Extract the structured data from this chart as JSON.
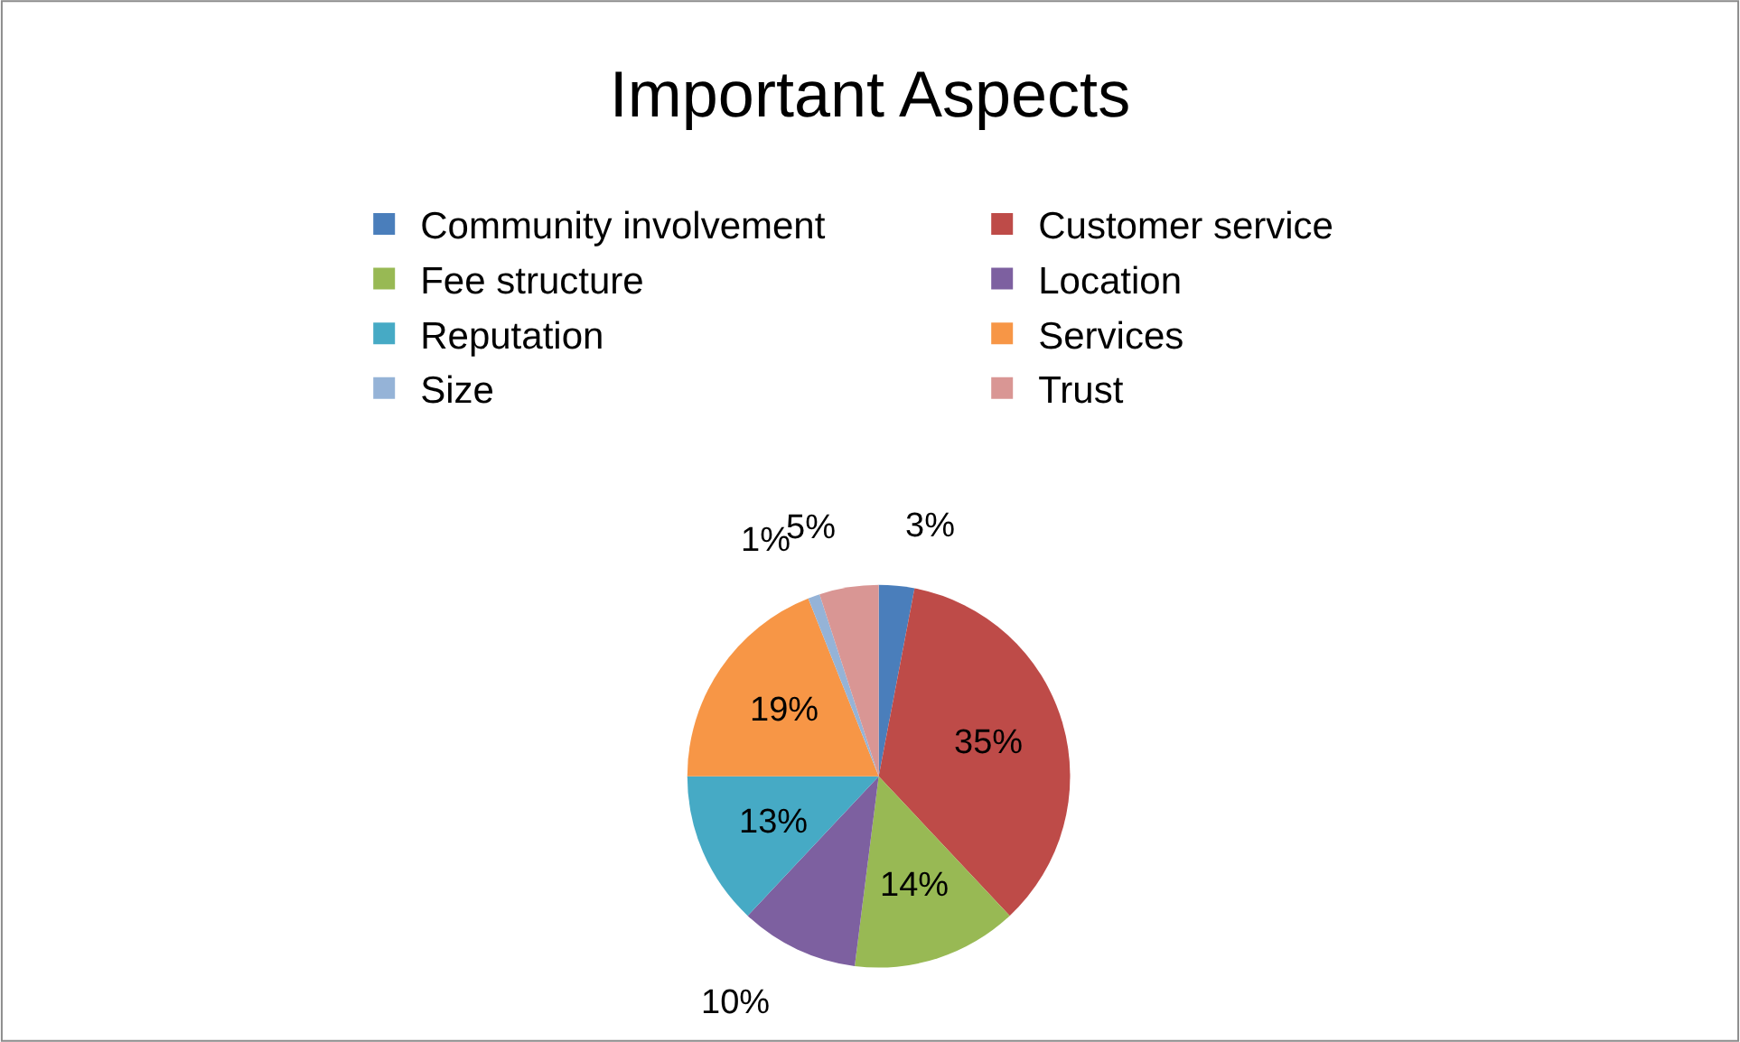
{
  "chart_data": {
    "type": "pie",
    "title": "Important Aspects",
    "categories": [
      "Community involvement",
      "Customer service",
      "Fee structure",
      "Location",
      "Reputation",
      "Services",
      "Size",
      "Trust"
    ],
    "values": [
      3,
      35,
      14,
      10,
      13,
      19,
      1,
      5
    ],
    "colors": [
      "#4a7ebb",
      "#be4b48",
      "#98b954",
      "#7d60a0",
      "#46aac5",
      "#f79646",
      "#95b3d7",
      "#d99694"
    ],
    "value_labels": [
      "3%",
      "35%",
      "14%",
      "10%",
      "13%",
      "19%",
      "1%",
      "5%"
    ],
    "legend": "top"
  }
}
